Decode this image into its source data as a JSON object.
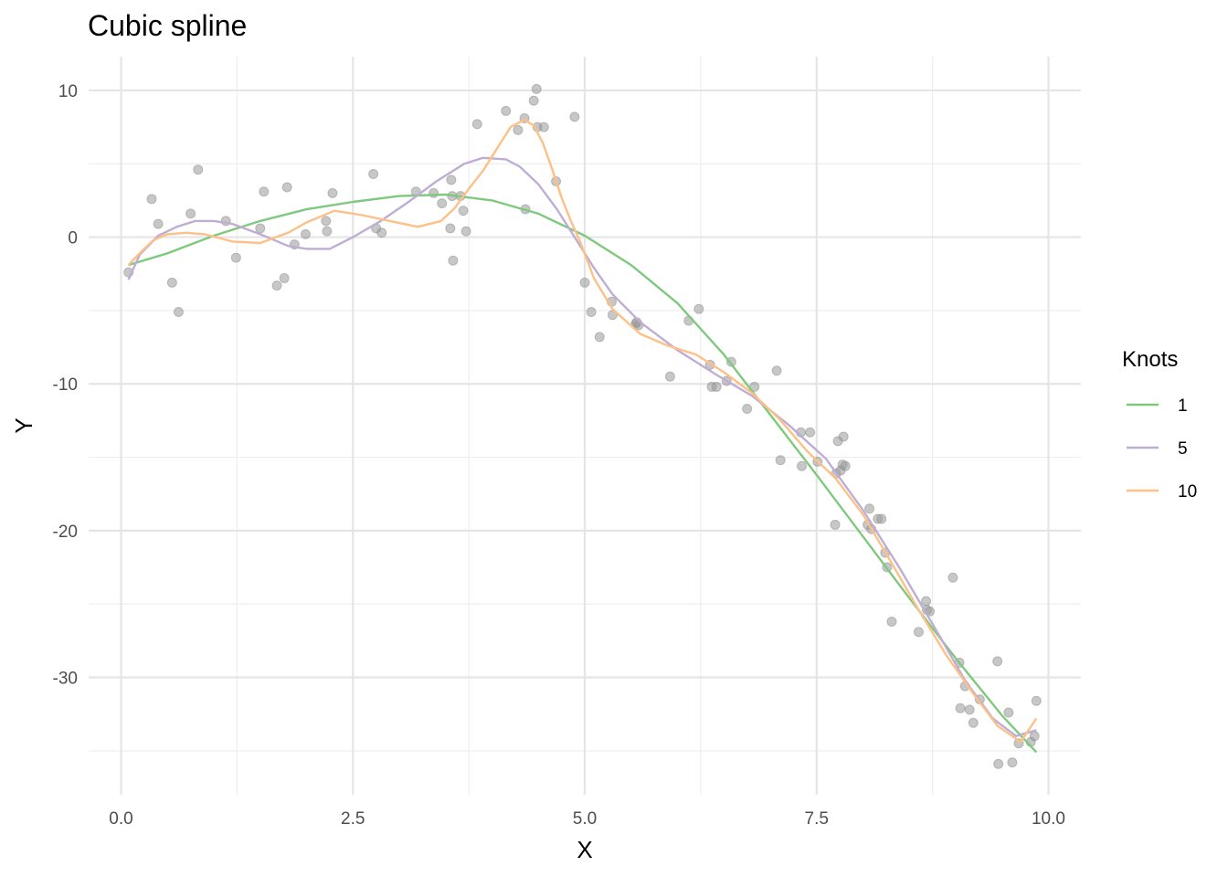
{
  "chart_data": {
    "type": "scatter",
    "title": "Cubic spline",
    "xlabel": "X",
    "ylabel": "Y",
    "xlim": [
      -0.35,
      10.35
    ],
    "ylim": [
      -38,
      12.3
    ],
    "x_ticks": [
      0.0,
      2.5,
      5.0,
      7.5,
      10.0
    ],
    "x_tick_labels": [
      "0.0",
      "2.5",
      "5.0",
      "7.5",
      "10.0"
    ],
    "y_ticks": [
      10,
      0,
      -10,
      -20,
      -30
    ],
    "y_tick_labels": [
      "10",
      "0",
      "-10",
      "-20",
      "-30"
    ],
    "grid": true,
    "legend": {
      "title": "Knots",
      "placement": "right",
      "entries": [
        "1",
        "5",
        "10"
      ]
    },
    "points": {
      "color": "#999999",
      "x": [
        0.08,
        0.33,
        0.4,
        0.55,
        0.62,
        0.75,
        0.83,
        1.13,
        1.24,
        1.5,
        1.54,
        1.68,
        1.76,
        1.79,
        1.87,
        1.99,
        2.21,
        2.22,
        2.28,
        2.72,
        2.75,
        2.81,
        3.18,
        3.37,
        3.46,
        3.55,
        3.56,
        3.57,
        3.58,
        3.66,
        3.69,
        3.72,
        3.84,
        4.15,
        4.28,
        4.36,
        4.35,
        4.45,
        4.48,
        4.49,
        4.56,
        4.69,
        4.89,
        5.0,
        5.07,
        5.16,
        5.29,
        5.3,
        5.55,
        5.56,
        5.58,
        5.92,
        6.12,
        6.23,
        6.35,
        6.37,
        6.42,
        6.53,
        6.58,
        6.75,
        6.83,
        7.07,
        7.11,
        7.33,
        7.34,
        7.43,
        7.51,
        7.7,
        7.71,
        7.73,
        7.76,
        7.78,
        7.79,
        7.81,
        8.05,
        8.07,
        8.09,
        8.16,
        8.2,
        8.24,
        8.26,
        8.31,
        8.6,
        8.68,
        8.69,
        8.72,
        8.97,
        9.04,
        9.05,
        9.1,
        9.15,
        9.19,
        9.26,
        9.45,
        9.46,
        9.57,
        9.61,
        9.68,
        9.81,
        9.85,
        9.87
      ],
      "y": [
        -2.4,
        2.6,
        0.9,
        -3.1,
        -5.1,
        1.6,
        4.6,
        1.1,
        -1.4,
        0.6,
        3.1,
        -3.3,
        -2.8,
        3.4,
        -0.5,
        0.2,
        1.1,
        0.4,
        3.0,
        4.3,
        0.6,
        0.3,
        3.1,
        3.0,
        2.3,
        0.6,
        3.9,
        2.8,
        -1.6,
        2.8,
        1.8,
        0.4,
        7.7,
        8.6,
        7.3,
        1.9,
        8.1,
        9.3,
        10.1,
        7.5,
        7.5,
        3.8,
        8.2,
        -3.1,
        -5.1,
        -6.8,
        -4.4,
        -5.3,
        -5.9,
        -5.8,
        -6.0,
        -9.5,
        -5.7,
        -4.9,
        -8.7,
        -10.2,
        -10.2,
        -9.8,
        -8.5,
        -11.7,
        -10.2,
        -9.1,
        -15.2,
        -13.3,
        -15.6,
        -13.3,
        -15.3,
        -19.6,
        -16.1,
        -13.9,
        -15.9,
        -15.5,
        -13.6,
        -15.6,
        -19.6,
        -18.5,
        -19.9,
        -19.2,
        -19.2,
        -21.5,
        -22.5,
        -26.2,
        -26.9,
        -24.8,
        -25.4,
        -25.5,
        -23.2,
        -29.0,
        -32.1,
        -30.6,
        -32.2,
        -33.1,
        -31.5,
        -28.9,
        -35.9,
        -32.4,
        -35.8,
        -34.5,
        -34.4,
        -34.0,
        -31.6
      ]
    },
    "series": [
      {
        "name": "1",
        "color": "#7fc97f",
        "x": [
          0.08,
          0.5,
          1.0,
          1.5,
          2.0,
          2.5,
          3.0,
          3.5,
          4.0,
          4.5,
          5.0,
          5.5,
          6.0,
          6.5,
          7.0,
          7.5,
          8.0,
          8.5,
          9.0,
          9.5,
          9.87
        ],
        "y": [
          -1.9,
          -1.1,
          0.1,
          1.1,
          1.9,
          2.4,
          2.8,
          2.9,
          2.5,
          1.6,
          0.1,
          -1.9,
          -4.5,
          -8.0,
          -12.1,
          -16.2,
          -20.4,
          -24.6,
          -28.7,
          -32.6,
          -35.1
        ]
      },
      {
        "name": "5",
        "color": "#beaed4",
        "x": [
          0.08,
          0.2,
          0.4,
          0.6,
          0.8,
          1.0,
          1.2,
          1.5,
          1.8,
          2.0,
          2.25,
          2.5,
          2.8,
          3.1,
          3.4,
          3.7,
          3.9,
          4.15,
          4.3,
          4.5,
          4.7,
          4.9,
          5.1,
          5.3,
          5.6,
          6.0,
          6.4,
          6.8,
          7.2,
          7.6,
          8.0,
          8.4,
          8.8,
          9.1,
          9.4,
          9.65,
          9.87
        ],
        "y": [
          -2.9,
          -1.2,
          0.1,
          0.7,
          1.1,
          1.1,
          0.9,
          0.2,
          -0.6,
          -0.8,
          -0.8,
          0.0,
          1.1,
          2.4,
          3.8,
          5.0,
          5.4,
          5.3,
          4.8,
          3.6,
          1.9,
          -0.1,
          -2.1,
          -3.9,
          -5.8,
          -7.7,
          -9.3,
          -10.8,
          -12.8,
          -15.1,
          -18.6,
          -22.6,
          -26.9,
          -30.2,
          -32.8,
          -34.0,
          -33.6
        ]
      },
      {
        "name": "10",
        "color": "#fdc086",
        "x": [
          0.08,
          0.2,
          0.35,
          0.5,
          0.7,
          0.9,
          1.2,
          1.5,
          1.8,
          2.0,
          2.3,
          2.6,
          2.9,
          3.2,
          3.45,
          3.6,
          3.75,
          3.9,
          4.05,
          4.2,
          4.35,
          4.45,
          4.55,
          4.65,
          4.75,
          4.85,
          4.95,
          5.1,
          5.3,
          5.6,
          5.9,
          6.2,
          6.5,
          6.8,
          7.1,
          7.4,
          7.7,
          8.0,
          8.3,
          8.6,
          8.9,
          9.2,
          9.45,
          9.7,
          9.87
        ],
        "y": [
          -1.9,
          -1.1,
          -0.2,
          0.2,
          0.3,
          0.2,
          -0.3,
          -0.4,
          0.3,
          1.0,
          1.8,
          1.5,
          1.1,
          0.7,
          1.1,
          2.0,
          3.3,
          4.5,
          6.0,
          7.5,
          8.0,
          7.6,
          6.4,
          4.6,
          2.7,
          1.1,
          -0.3,
          -2.8,
          -4.9,
          -6.6,
          -7.4,
          -8.0,
          -9.2,
          -10.6,
          -12.4,
          -14.6,
          -16.4,
          -18.9,
          -22.1,
          -25.4,
          -28.5,
          -31.2,
          -33.3,
          -34.4,
          -32.8
        ]
      }
    ]
  }
}
